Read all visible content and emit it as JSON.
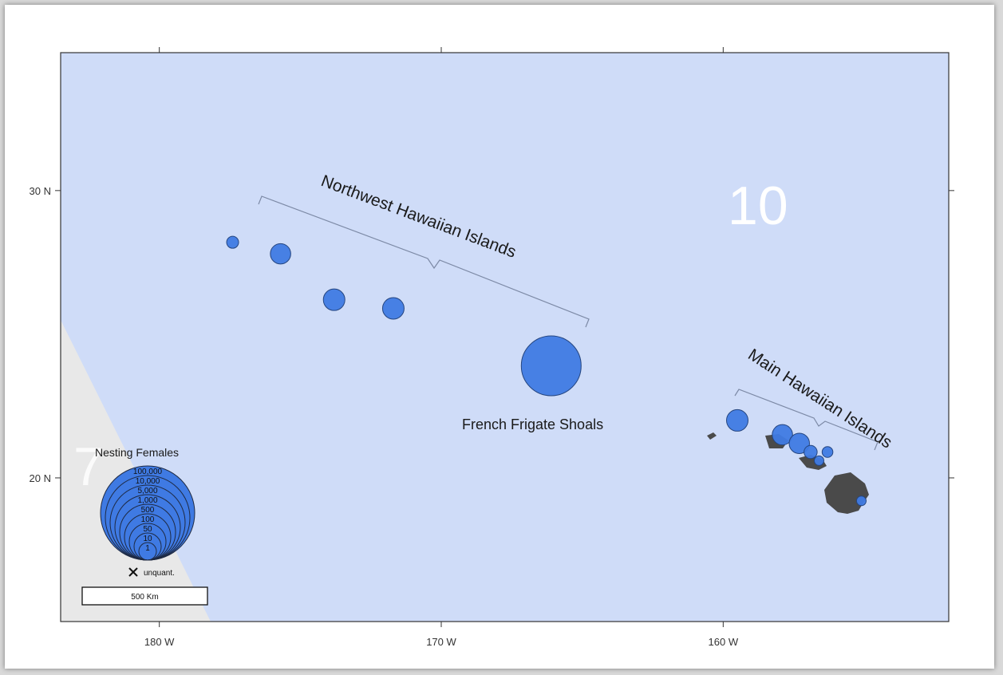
{
  "map": {
    "lon_range": [
      -183.5,
      -152.0
    ],
    "lat_range": [
      15.0,
      34.8
    ],
    "x_ticks": [
      {
        "lon": -180,
        "label": "180 W"
      },
      {
        "lon": -170,
        "label": "170 W"
      },
      {
        "lon": -160,
        "label": "160 W"
      }
    ],
    "y_ticks": [
      {
        "lat": 30,
        "label": "30 N"
      },
      {
        "lat": 20,
        "label": "20 N"
      }
    ],
    "colors": {
      "ocean": "#cfdcf8",
      "outside": "#e8e8e8",
      "marker": "#3f7ae3",
      "marker_edge": "#25457f",
      "land": "#4a4a4a"
    }
  },
  "regions": {
    "northwest": "Northwest Hawaiian Islands",
    "main": "Main Hawaiian Islands",
    "zone_left": "7",
    "zone_right": "10"
  },
  "sites": [
    {
      "lon": -177.4,
      "lat": 28.2,
      "size": 1.0
    },
    {
      "lon": -175.7,
      "lat": 27.8,
      "size": 1.7
    },
    {
      "lon": -173.8,
      "lat": 26.2,
      "size": 1.8
    },
    {
      "lon": -171.7,
      "lat": 25.9,
      "size": 1.8
    },
    {
      "lon": -166.1,
      "lat": 23.9,
      "size": 5.0,
      "label": "French Frigate Shoals"
    },
    {
      "lon": -159.5,
      "lat": 22.0,
      "size": 1.8
    },
    {
      "lon": -157.9,
      "lat": 21.5,
      "size": 1.7
    },
    {
      "lon": -157.3,
      "lat": 21.2,
      "size": 1.7
    },
    {
      "lon": -156.9,
      "lat": 20.9,
      "size": 1.1
    },
    {
      "lon": -156.6,
      "lat": 20.6,
      "size": 0.8
    },
    {
      "lon": -156.3,
      "lat": 20.9,
      "size": 0.9
    },
    {
      "lon": -155.1,
      "lat": 19.2,
      "size": 0.8
    }
  ],
  "legend": {
    "title": "Nesting Females",
    "classes": [
      "100,000",
      "10,000",
      "5,000",
      "1,000",
      "500",
      "100",
      "50",
      "10",
      "1"
    ],
    "unquantified": "unquant.",
    "scale_bar": "500 Km"
  }
}
